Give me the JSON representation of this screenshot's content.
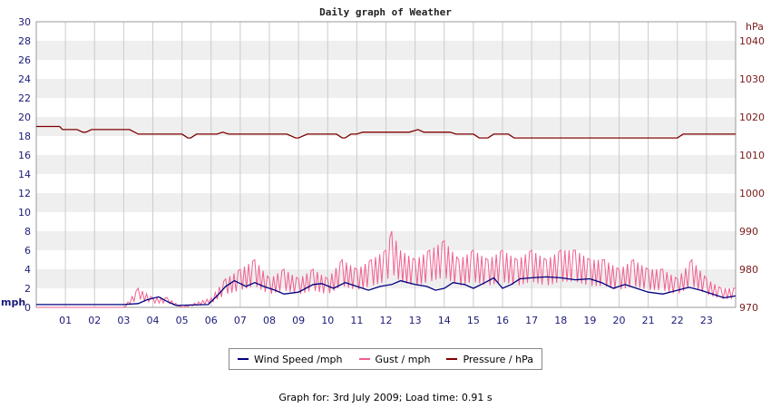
{
  "footer": {
    "text": "Graph for: 3rd July 2009; Load time: 0.91 s"
  },
  "chart_data": {
    "type": "line",
    "title": "Daily graph of Weather",
    "x_tick_labels": [
      "01",
      "02",
      "03",
      "04",
      "05",
      "06",
      "07",
      "08",
      "09",
      "10",
      "11",
      "12",
      "13",
      "14",
      "15",
      "16",
      "17",
      "18",
      "19",
      "20",
      "21",
      "22",
      "23"
    ],
    "x_range_hours": [
      0,
      24
    ],
    "y_left": {
      "unit_label": "mph",
      "ylim": [
        0,
        30
      ],
      "ticks": [
        0,
        2,
        4,
        6,
        8,
        10,
        12,
        14,
        16,
        18,
        20,
        22,
        24,
        26,
        28,
        30
      ]
    },
    "y_right": {
      "unit_label": "hPa",
      "ylim": [
        970,
        1045
      ],
      "ticks": [
        970,
        980,
        990,
        1000,
        1010,
        1020,
        1030,
        1040
      ]
    },
    "grid": true,
    "legend_position": "bottom",
    "series": [
      {
        "name": "Wind Speed /mph",
        "axis": "left",
        "color": "#000080",
        "points": [
          [
            0,
            0.3
          ],
          [
            3,
            0.3
          ],
          [
            3.5,
            0.4
          ],
          [
            3.8,
            0.8
          ],
          [
            4.2,
            1.1
          ],
          [
            4.5,
            0.6
          ],
          [
            4.8,
            0.2
          ],
          [
            5.9,
            0.3
          ],
          [
            6.2,
            1.2
          ],
          [
            6.5,
            2.2
          ],
          [
            6.8,
            2.8
          ],
          [
            7.2,
            2.2
          ],
          [
            7.5,
            2.6
          ],
          [
            7.8,
            2.2
          ],
          [
            8.2,
            1.8
          ],
          [
            8.5,
            1.4
          ],
          [
            9.0,
            1.6
          ],
          [
            9.5,
            2.4
          ],
          [
            9.8,
            2.5
          ],
          [
            10.2,
            2.0
          ],
          [
            10.6,
            2.6
          ],
          [
            11.0,
            2.2
          ],
          [
            11.4,
            1.8
          ],
          [
            11.8,
            2.2
          ],
          [
            12.2,
            2.4
          ],
          [
            12.5,
            2.8
          ],
          [
            13.0,
            2.4
          ],
          [
            13.4,
            2.2
          ],
          [
            13.7,
            1.8
          ],
          [
            14.0,
            2.0
          ],
          [
            14.3,
            2.6
          ],
          [
            14.7,
            2.4
          ],
          [
            15.0,
            2.0
          ],
          [
            15.4,
            2.6
          ],
          [
            15.7,
            3.1
          ],
          [
            16.0,
            2.0
          ],
          [
            16.3,
            2.4
          ],
          [
            16.6,
            3.0
          ],
          [
            17.0,
            3.1
          ],
          [
            17.5,
            3.2
          ],
          [
            18.0,
            3.1
          ],
          [
            18.5,
            2.9
          ],
          [
            19.0,
            3.0
          ],
          [
            19.4,
            2.6
          ],
          [
            19.8,
            2.0
          ],
          [
            20.2,
            2.4
          ],
          [
            20.6,
            2.0
          ],
          [
            21.0,
            1.6
          ],
          [
            21.5,
            1.4
          ],
          [
            22.0,
            1.8
          ],
          [
            22.4,
            2.1
          ],
          [
            22.8,
            1.8
          ],
          [
            23.2,
            1.4
          ],
          [
            23.6,
            1.0
          ],
          [
            24.0,
            1.2
          ]
        ]
      },
      {
        "name": "Gust / mph",
        "axis": "left",
        "color": "#f06090",
        "points": [
          [
            0,
            0
          ],
          [
            3,
            0
          ],
          [
            3.5,
            2
          ],
          [
            4,
            1
          ],
          [
            4.5,
            1
          ],
          [
            5,
            0
          ],
          [
            6,
            1
          ],
          [
            6.5,
            3
          ],
          [
            7,
            4
          ],
          [
            7.5,
            5
          ],
          [
            8,
            3
          ],
          [
            8.5,
            4
          ],
          [
            9,
            3
          ],
          [
            9.5,
            4
          ],
          [
            10,
            3
          ],
          [
            10.5,
            5
          ],
          [
            11,
            4
          ],
          [
            11.5,
            5
          ],
          [
            12,
            6
          ],
          [
            12.2,
            8
          ],
          [
            12.5,
            6
          ],
          [
            13,
            5
          ],
          [
            13.5,
            6
          ],
          [
            14,
            7
          ],
          [
            14.5,
            5
          ],
          [
            15,
            6
          ],
          [
            15.5,
            5
          ],
          [
            16,
            6
          ],
          [
            16.5,
            5
          ],
          [
            17,
            6
          ],
          [
            17.5,
            5
          ],
          [
            18,
            6
          ],
          [
            18.5,
            6
          ],
          [
            19,
            5
          ],
          [
            19.5,
            5
          ],
          [
            20,
            4
          ],
          [
            20.5,
            5
          ],
          [
            21,
            4
          ],
          [
            21.5,
            4
          ],
          [
            22,
            3
          ],
          [
            22.5,
            5
          ],
          [
            23,
            3
          ],
          [
            23.5,
            2
          ],
          [
            24,
            2
          ]
        ]
      },
      {
        "name": "Pressure / hPa",
        "axis": "right",
        "color": "#800000",
        "points": [
          [
            0,
            1017.5
          ],
          [
            0.8,
            1017.5
          ],
          [
            0.9,
            1016.7
          ],
          [
            1.4,
            1016.7
          ],
          [
            1.6,
            1016
          ],
          [
            1.7,
            1016
          ],
          [
            1.9,
            1016.7
          ],
          [
            3.2,
            1016.7
          ],
          [
            3.5,
            1015.5
          ],
          [
            5.0,
            1015.5
          ],
          [
            5.2,
            1014.5
          ],
          [
            5.3,
            1014.5
          ],
          [
            5.5,
            1015.5
          ],
          [
            6.2,
            1015.5
          ],
          [
            6.4,
            1016
          ],
          [
            6.6,
            1015.5
          ],
          [
            8.6,
            1015.5
          ],
          [
            8.9,
            1014.5
          ],
          [
            9.0,
            1014.5
          ],
          [
            9.3,
            1015.5
          ],
          [
            10.3,
            1015.5
          ],
          [
            10.5,
            1014.5
          ],
          [
            10.6,
            1014.5
          ],
          [
            10.8,
            1015.5
          ],
          [
            11.0,
            1015.5
          ],
          [
            11.2,
            1016
          ],
          [
            12.8,
            1016
          ],
          [
            13.1,
            1016.7
          ],
          [
            13.3,
            1016
          ],
          [
            14.2,
            1016
          ],
          [
            14.4,
            1015.5
          ],
          [
            15.0,
            1015.5
          ],
          [
            15.2,
            1014.5
          ],
          [
            15.5,
            1014.5
          ],
          [
            15.7,
            1015.5
          ],
          [
            16.2,
            1015.5
          ],
          [
            16.4,
            1014.5
          ],
          [
            22.0,
            1014.5
          ],
          [
            22.2,
            1015.5
          ],
          [
            24.0,
            1015.5
          ]
        ]
      }
    ]
  }
}
